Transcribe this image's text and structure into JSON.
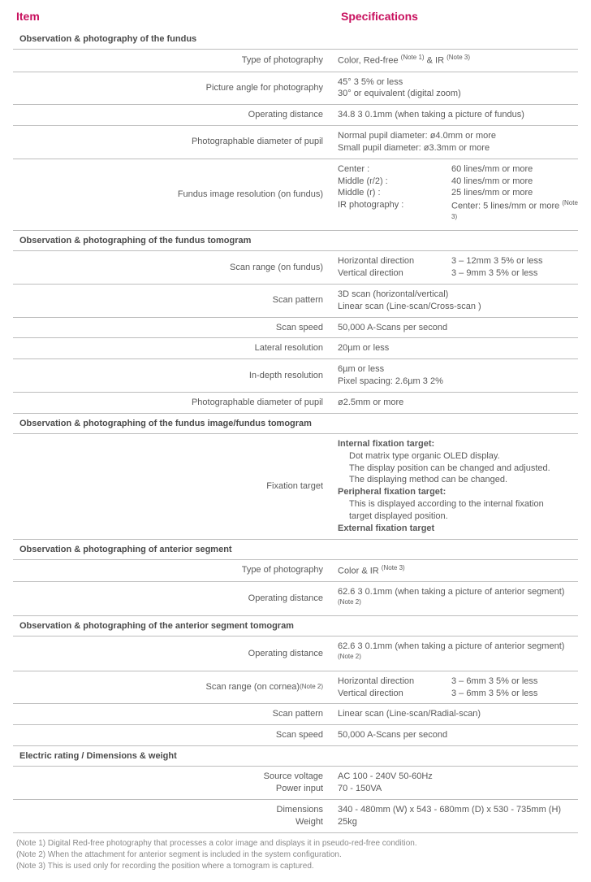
{
  "header": {
    "item": "Item",
    "spec": "Specifications"
  },
  "sections": {
    "s1": "Observation & photography of the fundus",
    "s2": "Observation & photographing of the fundus tomogram",
    "s3": "Observation & photographing of the fundus image/fundus tomogram",
    "s4": "Observation & photographing of anterior segment",
    "s5": "Observation & photographing of the anterior segment tomogram",
    "s6": "Electric rating / Dimensions & weight"
  },
  "s1": {
    "r1_l": "Type of photography",
    "r1_v_a": "Color, Red-free ",
    "r1_v_sup1": "(Note 1)",
    "r1_v_b": " & IR ",
    "r1_v_sup2": "(Note 3)",
    "r2_l": "Picture angle for photography",
    "r2_v1": "45° 3 5% or less",
    "r2_v2": "30° or equivalent (digital zoom)",
    "r3_l": "Operating distance",
    "r3_v": "34.8 3 0.1mm (when taking a picture of fundus)",
    "r4_l": "Photographable diameter of pupil",
    "r4_v1": "Normal pupil diameter: ø4.0mm or more",
    "r4_v2": "Small pupil diameter: ø3.3mm or more",
    "r5_l": "Fundus image resolution (on fundus)",
    "r5_c1a": "Center :",
    "r5_c2a": "60 lines/mm or more",
    "r5_c1b": "Middle (r/2) :",
    "r5_c2b": "40 lines/mm or more",
    "r5_c1c": "Middle (r) :",
    "r5_c2c": "25 lines/mm or more",
    "r5_c1d": "IR photography :",
    "r5_c2d": "Center: 5 lines/mm or more ",
    "r5_sup": "(Note 3)"
  },
  "s2": {
    "r1_l": "Scan range (on fundus)",
    "r1_c1a": "Horizontal direction",
    "r1_c2a": "3 – 12mm 3 5% or less",
    "r1_c1b": "Vertical direction",
    "r1_c2b": "3 – 9mm 3 5% or less",
    "r2_l": "Scan pattern",
    "r2_v1": "3D scan (horizontal/vertical)",
    "r2_v2": "Linear scan (Line-scan/Cross-scan )",
    "r3_l": "Scan speed",
    "r3_v": "50,000 A-Scans per second",
    "r4_l": "Lateral resolution",
    "r4_v": "20µm or less",
    "r5_l": "In-depth resolution",
    "r5_v1": "6µm or less",
    "r5_v2": "Pixel spacing: 2.6µm 3 2%",
    "r6_l": "Photographable diameter of pupil",
    "r6_v": "ø2.5mm or more"
  },
  "s3": {
    "r1_l": "Fixation target",
    "h1": "Internal fixation target:",
    "l1": "Dot matrix type organic OLED display.",
    "l2": "The display position can be changed and adjusted.",
    "l3": "The displaying method can be changed.",
    "h2": "Peripheral fixation target:",
    "l4": "This is displayed according to the internal fixation",
    "l5": "target displayed position.",
    "h3": "External fixation target"
  },
  "s4": {
    "r1_l": "Type of photography",
    "r1_v": "Color & IR ",
    "r1_sup": "(Note 3)",
    "r2_l": "Operating distance",
    "r2_v": "62.6 3 0.1mm (when taking a picture of anterior segment) ",
    "r2_sup": "(Note 2)"
  },
  "s5": {
    "r1_l": "Operating distance",
    "r1_v": "62.6 3 0.1mm (when taking a picture of anterior segment) ",
    "r1_sup": "(Note 2)",
    "r2_l": "Scan range (on cornea) ",
    "r2_l_sup": "(Note 2)",
    "r2_c1a": "Horizontal direction",
    "r2_c2a": "3 – 6mm 3 5% or less",
    "r2_c1b": "Vertical direction",
    "r2_c2b": "3 – 6mm 3 5% or less",
    "r3_l": "Scan pattern",
    "r3_v": "Linear scan (Line-scan/Radial-scan)",
    "r4_l": "Scan speed",
    "r4_v": "50,000 A-Scans per second"
  },
  "s6": {
    "r1_l1": "Source voltage",
    "r1_l2": "Power input",
    "r1_v1": "AC 100 - 240V 50-60Hz",
    "r1_v2": "70 - 150VA",
    "r2_l1": "Dimensions",
    "r2_l2": "Weight",
    "r2_v1": "340 - 480mm (W) x 543 - 680mm (D) x 530 - 735mm (H)",
    "r2_v2": "25kg"
  },
  "notes": {
    "n1": "(Note 1)  Digital Red-free photography that processes a color image and displays it in pseudo-red-free condition.",
    "n2": "(Note 2) When the attachment for anterior segment is included in the system configuration.",
    "n3": "(Note 3)  This is used only for recording the position where a tomogram is captured."
  }
}
